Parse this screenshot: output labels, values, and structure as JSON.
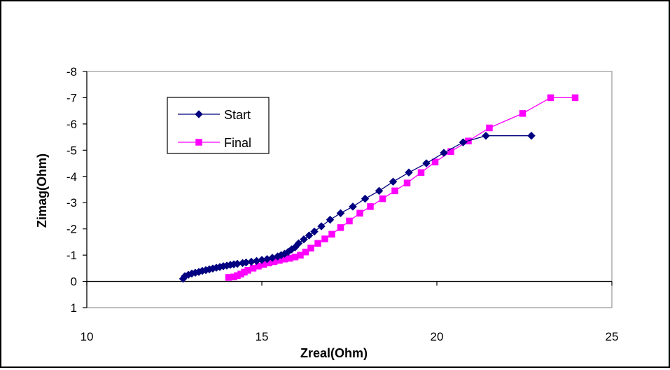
{
  "chart_data": {
    "type": "scatter",
    "xlabel": "Zreal(Ohm)",
    "ylabel": "Zimag(Ohm)",
    "xlim": [
      10,
      25
    ],
    "ylim": [
      -8,
      1
    ],
    "y_reversed": true,
    "xticks": [
      10,
      15,
      20,
      25
    ],
    "yticks": [
      -8,
      -7,
      -6,
      -5,
      -4,
      -3,
      -2,
      -1,
      0,
      1
    ],
    "grid": false,
    "legend_position": "top-left",
    "series": [
      {
        "name": "Start",
        "color": "#000080",
        "marker": "diamond",
        "points": [
          [
            12.75,
            -0.1
          ],
          [
            12.8,
            -0.2
          ],
          [
            12.9,
            -0.25
          ],
          [
            13.0,
            -0.3
          ],
          [
            13.1,
            -0.33
          ],
          [
            13.2,
            -0.36
          ],
          [
            13.3,
            -0.4
          ],
          [
            13.4,
            -0.43
          ],
          [
            13.5,
            -0.46
          ],
          [
            13.6,
            -0.49
          ],
          [
            13.7,
            -0.52
          ],
          [
            13.8,
            -0.55
          ],
          [
            13.9,
            -0.58
          ],
          [
            14.0,
            -0.6
          ],
          [
            14.1,
            -0.63
          ],
          [
            14.2,
            -0.65
          ],
          [
            14.3,
            -0.67
          ],
          [
            14.45,
            -0.7
          ],
          [
            14.55,
            -0.72
          ],
          [
            14.7,
            -0.75
          ],
          [
            14.85,
            -0.78
          ],
          [
            15.0,
            -0.82
          ],
          [
            15.15,
            -0.85
          ],
          [
            15.3,
            -0.9
          ],
          [
            15.45,
            -0.95
          ],
          [
            15.55,
            -1.0
          ],
          [
            15.65,
            -1.05
          ],
          [
            15.75,
            -1.12
          ],
          [
            15.85,
            -1.22
          ],
          [
            15.95,
            -1.3
          ],
          [
            16.05,
            -1.45
          ],
          [
            16.2,
            -1.6
          ],
          [
            16.35,
            -1.75
          ],
          [
            16.5,
            -1.9
          ],
          [
            16.7,
            -2.1
          ],
          [
            16.95,
            -2.35
          ],
          [
            17.25,
            -2.6
          ],
          [
            17.6,
            -2.85
          ],
          [
            17.95,
            -3.15
          ],
          [
            18.35,
            -3.45
          ],
          [
            18.75,
            -3.8
          ],
          [
            19.2,
            -4.15
          ],
          [
            19.7,
            -4.5
          ],
          [
            20.2,
            -4.9
          ],
          [
            20.75,
            -5.3
          ],
          [
            21.4,
            -5.55
          ],
          [
            22.7,
            -5.55
          ]
        ]
      },
      {
        "name": "Final",
        "color": "#FF00FF",
        "marker": "square",
        "points": [
          [
            14.05,
            -0.15
          ],
          [
            14.2,
            -0.17
          ],
          [
            14.3,
            -0.22
          ],
          [
            14.4,
            -0.28
          ],
          [
            14.5,
            -0.35
          ],
          [
            14.6,
            -0.42
          ],
          [
            14.75,
            -0.5
          ],
          [
            14.9,
            -0.58
          ],
          [
            15.05,
            -0.65
          ],
          [
            15.2,
            -0.7
          ],
          [
            15.35,
            -0.75
          ],
          [
            15.5,
            -0.8
          ],
          [
            15.65,
            -0.85
          ],
          [
            15.8,
            -0.88
          ],
          [
            15.95,
            -0.93
          ],
          [
            16.1,
            -1.0
          ],
          [
            16.25,
            -1.12
          ],
          [
            16.4,
            -1.27
          ],
          [
            16.6,
            -1.45
          ],
          [
            16.8,
            -1.62
          ],
          [
            17.0,
            -1.8
          ],
          [
            17.25,
            -2.05
          ],
          [
            17.5,
            -2.3
          ],
          [
            17.8,
            -2.6
          ],
          [
            18.1,
            -2.85
          ],
          [
            18.45,
            -3.15
          ],
          [
            18.8,
            -3.45
          ],
          [
            19.15,
            -3.75
          ],
          [
            19.55,
            -4.15
          ],
          [
            19.95,
            -4.55
          ],
          [
            20.4,
            -4.95
          ],
          [
            20.9,
            -5.35
          ],
          [
            21.5,
            -5.85
          ],
          [
            22.45,
            -6.4
          ],
          [
            23.25,
            -7.0
          ],
          [
            23.95,
            -7.0
          ]
        ]
      }
    ]
  }
}
